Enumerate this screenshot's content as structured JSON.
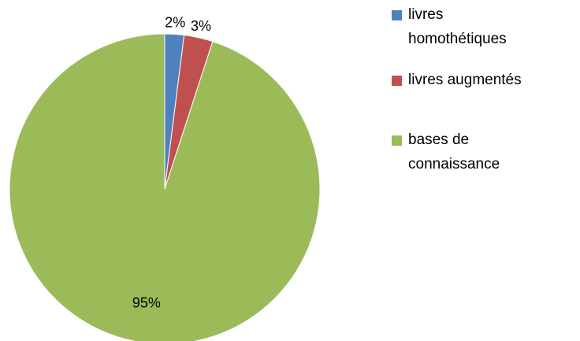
{
  "chart_data": {
    "type": "pie",
    "categories": [
      "livres homothétiques",
      "livres augmentés",
      "bases de connaissance"
    ],
    "values": [
      2,
      3,
      95
    ],
    "value_labels": [
      "2%",
      "3%",
      "95%"
    ],
    "colors": [
      "#4f81bd",
      "#c0504d",
      "#9bbb59"
    ],
    "legend": "right"
  }
}
